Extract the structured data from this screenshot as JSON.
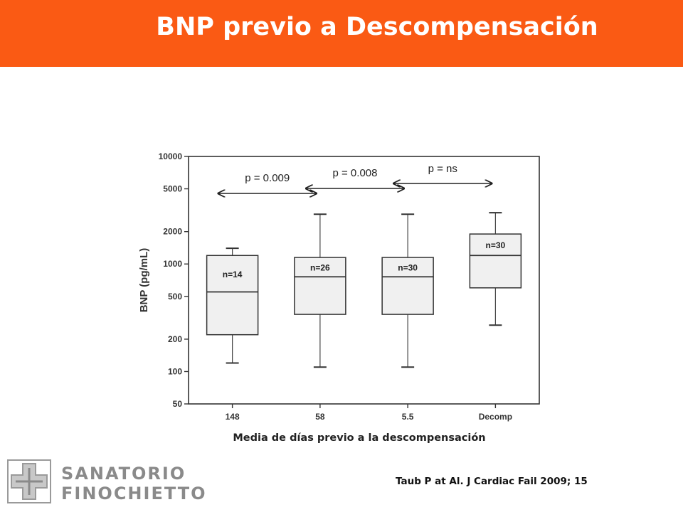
{
  "header": {
    "title": "BNP previo a Descompensación"
  },
  "caption": "Media de días previo a la descompensación",
  "citation": "Taub P at Al. J Cardiac Fail 2009; 15",
  "logo": {
    "line1": "SANATORIO",
    "line2": "FINOCHIETTO"
  },
  "colors": {
    "header_bg": "#fa5a14",
    "box_fill": "#f0f0f0",
    "logo_gray": "#8a8a8a"
  },
  "chart_data": {
    "type": "boxplot",
    "xlabel": "Media de días previo a la descompensación",
    "ylabel": "BNP (pg/mL)",
    "yscale": "log",
    "ylim": [
      50,
      10000
    ],
    "yticks": [
      50,
      100,
      200,
      500,
      1000,
      2000,
      5000,
      10000
    ],
    "categories": [
      "148",
      "58",
      "5.5",
      "Decomp"
    ],
    "boxes": [
      {
        "category": "148",
        "n_label": "n=14",
        "whisker_low": 120,
        "q1": 220,
        "median": 550,
        "q3": 1200,
        "whisker_high": 1400
      },
      {
        "category": "58",
        "n_label": "n=26",
        "whisker_low": 110,
        "q1": 340,
        "median": 760,
        "q3": 1150,
        "whisker_high": 2900
      },
      {
        "category": "5.5",
        "n_label": "n=30",
        "whisker_low": 110,
        "q1": 340,
        "median": 760,
        "q3": 1150,
        "whisker_high": 2900
      },
      {
        "category": "Decomp",
        "n_label": "n=30",
        "whisker_low": 270,
        "q1": 600,
        "median": 1200,
        "q3": 1900,
        "whisker_high": 3000
      }
    ],
    "annotations": [
      {
        "text": "p = 0.009",
        "from": "148",
        "to": "58"
      },
      {
        "text": "p = 0.008",
        "from": "58",
        "to": "5.5"
      },
      {
        "text": "p = ns",
        "from": "5.5",
        "to": "Decomp"
      }
    ],
    "grid": false
  }
}
